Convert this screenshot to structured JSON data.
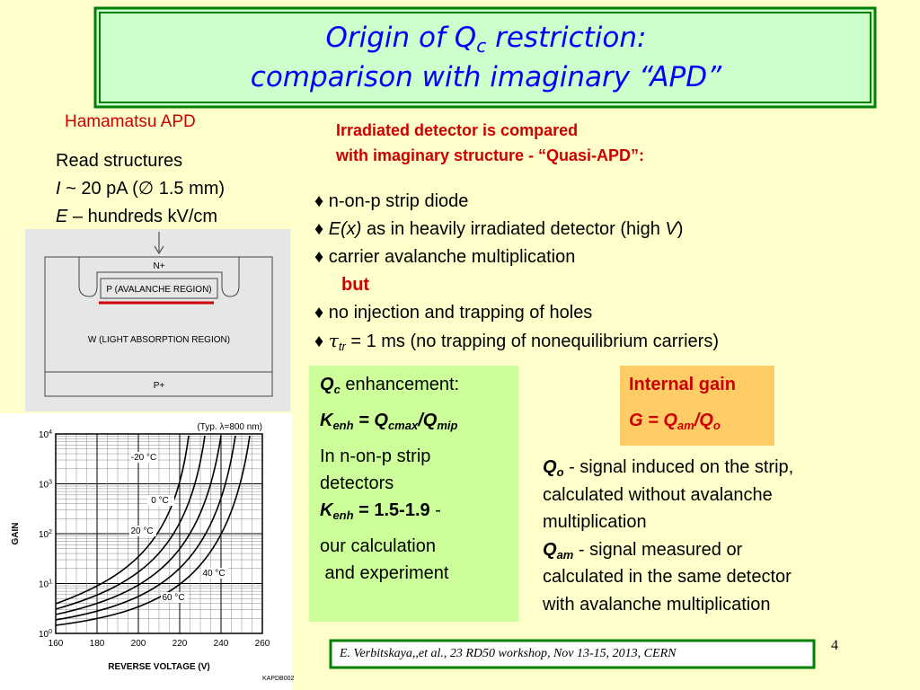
{
  "title": {
    "l1a": "Origin of Q",
    "l1sub": "c",
    "l1b": " restriction:",
    "l2": "comparison with imaginary “APD”"
  },
  "left": {
    "heading": "Hamamatsu APD",
    "read": "Read structures",
    "i_var": "I",
    "i_rest": " ~ 20 pA (∅ 1.5 mm)",
    "e_var": "E",
    "e_rest": " – hundreds kV/cm"
  },
  "diagram": {
    "n": "N+",
    "p": "P (AVALANCHE REGION)",
    "w": "W (LIGHT ABSORPTION REGION)",
    "pp": "P+"
  },
  "graph": {
    "note": "(Typ. λ=800 nm)",
    "ylabel": "GAIN",
    "xlabel": "REVERSE VOLTAGE (V)",
    "code": "KAPDB002",
    "yticks": [
      {
        "base": "10",
        "exp": "4"
      },
      {
        "base": "10",
        "exp": "3"
      },
      {
        "base": "10",
        "exp": "2"
      },
      {
        "base": "10",
        "exp": "1"
      },
      {
        "base": "10",
        "exp": "0"
      }
    ],
    "xticks": [
      "160",
      "180",
      "200",
      "220",
      "240",
      "260"
    ],
    "temps": [
      "-20 °C",
      "0 °C",
      "20 °C",
      "40 °C",
      "60 °C"
    ]
  },
  "right": {
    "h1": "Irradiated detector is compared",
    "h2": "with imaginary structure - “Quasi-APD”:",
    "b1": "n-on-p strip diode",
    "b2a": "E(x)",
    "b2b": " as in heavily irradiated detector (high ",
    "b2c": "V",
    "b2d": ")",
    "b3": "carrier avalanche multiplication",
    "but": "but",
    "b4": "no injection and trapping of  holes",
    "b5a": "τ",
    "b5sub": "tr",
    "b5b": " = 1 ms (no trapping of nonequilibrium carriers)"
  },
  "green": {
    "q": "Q",
    "qsub": "c",
    "qrest": " enhancement:",
    "k": "K",
    "ksub": "enh",
    "eq1": " = Q",
    "cmax": "cmax",
    "slash": "/Q",
    "mip": "mip",
    "l3": "In n-on-p strip",
    "l4": "detectors",
    "k2": "K",
    "k2sub": "enh",
    "k2val": " = 1.5-1.9",
    "dash": " -",
    "l6": "our calculation",
    "l7": " and experiment"
  },
  "orange": {
    "head": "Internal gain",
    "g": "G = Q",
    "am": "am",
    "sl": "/Q",
    "o": "o"
  },
  "notes": {
    "q": "Q",
    "qo": "o",
    "l1": " - signal induced on the strip,",
    "l2": "calculated without avalanche",
    "l3": "multiplication",
    "q2": "Q",
    "qam": "am",
    "l4": " - signal measured or",
    "l5": "calculated in the same detector",
    "l6": "with avalanche multiplication"
  },
  "footer": {
    "ref": "E. Verbitskaya,,et  al., 23 RD50 workshop, Nov 13-15, 2013, CERN",
    "page": "4"
  }
}
